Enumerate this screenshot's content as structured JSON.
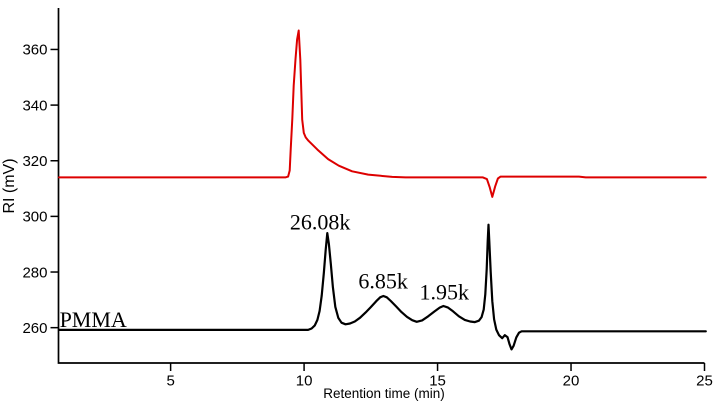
{
  "figure": {
    "background": "#ffffff"
  },
  "chart_data": {
    "type": "line",
    "title": "",
    "xlabel": "Retention time (min)",
    "ylabel": "RI (mV)",
    "x_range": [
      0.8,
      25.0
    ],
    "y_range": [
      247.3,
      374.9
    ],
    "x_ticks": [
      5,
      10,
      15,
      20,
      25
    ],
    "y_ticks": [
      260,
      280,
      300,
      320,
      340,
      360
    ],
    "grid": false,
    "legend": false,
    "axis_color": "#000000",
    "text_color": "#000000",
    "series": [
      {
        "name": "red-trace",
        "color": "#dd0000",
        "stroke_width": 2,
        "points": [
          [
            0.82,
            314.0
          ],
          [
            9.3,
            314.0
          ],
          [
            9.4,
            314.3
          ],
          [
            9.46,
            316.5
          ],
          [
            9.5,
            324.0
          ],
          [
            9.56,
            335.0
          ],
          [
            9.61,
            347.0
          ],
          [
            9.68,
            356.5
          ],
          [
            9.74,
            363.6
          ],
          [
            9.8,
            366.8
          ],
          [
            9.86,
            356.4
          ],
          [
            9.93,
            334.8
          ],
          [
            9.99,
            330.0
          ],
          [
            10.06,
            328.4
          ],
          [
            10.16,
            327.2
          ],
          [
            10.5,
            324.0
          ],
          [
            10.9,
            320.6
          ],
          [
            11.3,
            318.2
          ],
          [
            11.8,
            316.2
          ],
          [
            12.4,
            315.0
          ],
          [
            13.3,
            314.2
          ],
          [
            13.8,
            314.0
          ],
          [
            16.7,
            314.0
          ],
          [
            16.85,
            313.4
          ],
          [
            16.95,
            310.6
          ],
          [
            17.05,
            307.0
          ],
          [
            17.16,
            310.8
          ],
          [
            17.26,
            313.6
          ],
          [
            17.36,
            314.3
          ],
          [
            20.3,
            314.3
          ],
          [
            20.55,
            314.0
          ],
          [
            25.05,
            314.0
          ]
        ]
      },
      {
        "name": "pmma-trace",
        "color": "#000000",
        "stroke_width": 2.2,
        "points": [
          [
            0.82,
            259.2
          ],
          [
            10.15,
            259.2
          ],
          [
            10.28,
            259.7
          ],
          [
            10.4,
            260.8
          ],
          [
            10.5,
            262.8
          ],
          [
            10.58,
            266.0
          ],
          [
            10.66,
            271.5
          ],
          [
            10.74,
            279.5
          ],
          [
            10.81,
            288.0
          ],
          [
            10.87,
            294.0
          ],
          [
            10.93,
            290.0
          ],
          [
            11.0,
            283.0
          ],
          [
            11.08,
            274.5
          ],
          [
            11.17,
            267.5
          ],
          [
            11.28,
            263.5
          ],
          [
            11.4,
            261.8
          ],
          [
            11.55,
            261.2
          ],
          [
            11.72,
            261.5
          ],
          [
            11.9,
            262.2
          ],
          [
            12.1,
            263.6
          ],
          [
            12.3,
            265.4
          ],
          [
            12.5,
            267.4
          ],
          [
            12.7,
            269.5
          ],
          [
            12.85,
            270.9
          ],
          [
            12.97,
            271.4
          ],
          [
            13.1,
            270.9
          ],
          [
            13.25,
            269.6
          ],
          [
            13.45,
            267.6
          ],
          [
            13.65,
            265.6
          ],
          [
            13.85,
            263.9
          ],
          [
            14.05,
            262.7
          ],
          [
            14.22,
            262.1
          ],
          [
            14.42,
            262.6
          ],
          [
            14.65,
            264.1
          ],
          [
            14.88,
            265.8
          ],
          [
            15.08,
            267.2
          ],
          [
            15.22,
            267.8
          ],
          [
            15.38,
            267.3
          ],
          [
            15.58,
            265.9
          ],
          [
            15.8,
            264.1
          ],
          [
            16.02,
            262.8
          ],
          [
            16.22,
            262.2
          ],
          [
            16.4,
            262.0
          ],
          [
            16.55,
            262.5
          ],
          [
            16.65,
            263.8
          ],
          [
            16.73,
            266.5
          ],
          [
            16.79,
            272.0
          ],
          [
            16.84,
            281.0
          ],
          [
            16.88,
            291.0
          ],
          [
            16.91,
            297.0
          ],
          [
            16.94,
            291.0
          ],
          [
            16.99,
            280.0
          ],
          [
            17.05,
            269.5
          ],
          [
            17.12,
            263.0
          ],
          [
            17.2,
            259.3
          ],
          [
            17.3,
            257.3
          ],
          [
            17.42,
            256.2
          ],
          [
            17.52,
            257.3
          ],
          [
            17.62,
            256.6
          ],
          [
            17.7,
            254.0
          ],
          [
            17.77,
            252.2
          ],
          [
            17.85,
            253.5
          ],
          [
            17.95,
            256.5
          ],
          [
            18.05,
            258.2
          ],
          [
            18.15,
            258.7
          ],
          [
            25.05,
            258.7
          ]
        ]
      }
    ],
    "annotations": [
      {
        "id": "peak-label-26-08k",
        "text": "26.08k",
        "t": 10.6,
        "v": 298.1
      },
      {
        "id": "peak-label-6-85k",
        "text": "6.85k",
        "t": 12.96,
        "v": 276.8
      },
      {
        "id": "peak-label-1-95k",
        "text": "1.95k",
        "t": 15.25,
        "v": 272.9
      },
      {
        "id": "sample-label-pmma",
        "text": "PMMA",
        "t": 2.1,
        "v": 263.0
      }
    ]
  }
}
